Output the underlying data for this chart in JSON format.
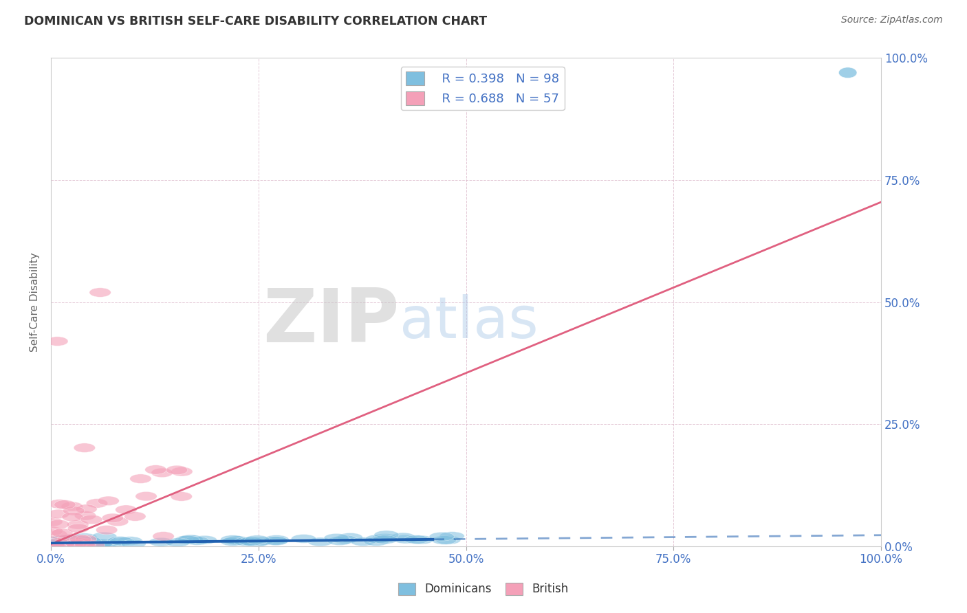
{
  "title": "DOMINICAN VS BRITISH SELF-CARE DISABILITY CORRELATION CHART",
  "source": "Source: ZipAtlas.com",
  "ylabel": "Self-Care Disability",
  "xlim": [
    0,
    1.0
  ],
  "ylim": [
    0,
    1.0
  ],
  "xticks": [
    0.0,
    0.25,
    0.5,
    0.75,
    1.0
  ],
  "xtick_labels": [
    "0.0%",
    "25.0%",
    "50.0%",
    "75.0%",
    "100.0%"
  ],
  "yticks": [
    0.0,
    0.25,
    0.5,
    0.75,
    1.0
  ],
  "ytick_labels": [
    "0.0%",
    "25.0%",
    "50.0%",
    "75.0%",
    "100.0%"
  ],
  "blue_color": "#7fbfdf",
  "pink_color": "#f4a0b8",
  "blue_line_color": "#2060b0",
  "pink_line_color": "#e06080",
  "R_blue": 0.398,
  "N_blue": 98,
  "R_pink": 0.688,
  "N_pink": 57,
  "legend_label_blue": "Dominicans",
  "legend_label_pink": "British",
  "watermark_zip": "ZIP",
  "watermark_atlas": "atlas",
  "background_color": "#ffffff",
  "grid_color": "#cccccc",
  "title_color": "#333333",
  "tick_color": "#4472c4",
  "blue_line_solid_end": 0.46,
  "blue_line_slope": 0.016,
  "blue_line_intercept": 0.007,
  "pink_line_slope": 0.7,
  "pink_line_intercept": 0.005,
  "pink_line_end": 1.0
}
